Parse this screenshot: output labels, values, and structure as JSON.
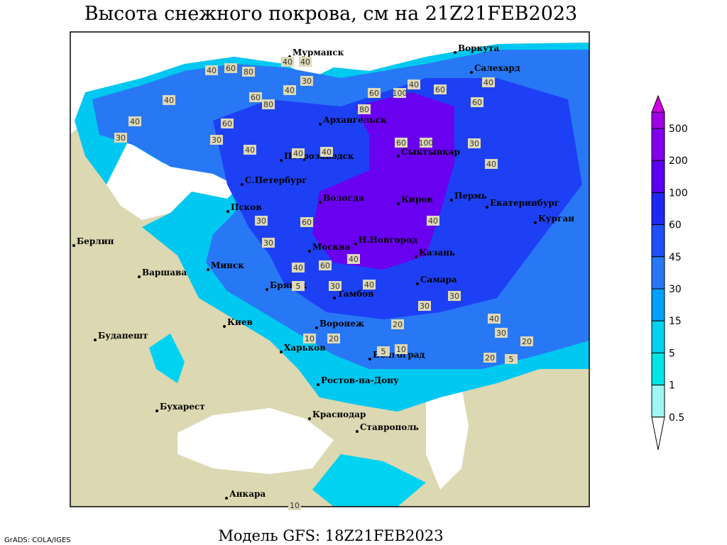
{
  "header": {
    "title": "Высота снежного покрова, см на 21Z21FEB2023"
  },
  "footer": {
    "credit": "GrADS: COLA/IGES",
    "model": "Модель GFS: 18Z21FEB2023"
  },
  "legend": {
    "levels": [
      {
        "value": 500,
        "label": "500",
        "color": "#a000e6"
      },
      {
        "value": 200,
        "label": "200",
        "color": "#8200f0"
      },
      {
        "value": 100,
        "label": "100",
        "color": "#5a00f5"
      },
      {
        "value": 60,
        "label": "60",
        "color": "#1e28f5"
      },
      {
        "value": 45,
        "label": "45",
        "color": "#1e50ff"
      },
      {
        "value": 30,
        "label": "30",
        "color": "#2878f5"
      },
      {
        "value": 15,
        "label": "15",
        "color": "#00a0ff"
      },
      {
        "value": 5,
        "label": "5",
        "color": "#00d2f0"
      },
      {
        "value": 1,
        "label": "1",
        "color": "#00e6e6"
      },
      {
        "value": 0.5,
        "label": "0.5",
        "color": "#a0f5f5"
      }
    ],
    "top_color": "#d200e6"
  },
  "cities": [
    "Мурманск",
    "Воркута",
    "Салехард",
    "Архангельск",
    "Петрозаводск",
    "Сыктывкар",
    "С.Петербург",
    "Вологда",
    "Киров",
    "Пермь",
    "Екатеринбург",
    "Курган",
    "Псков",
    "Берлин",
    "Н.Новгород",
    "Москва",
    "Казань",
    "Минск",
    "Варшава",
    "Самара",
    "Брянск",
    "Тамбов",
    "Киев",
    "Воронеж",
    "Будапешт",
    "Харьков",
    "Волгоград",
    "Ростов-на-Дону",
    "Бухарест",
    "Краснодар",
    "Ставрополь",
    "Анкара"
  ],
  "contour_labels": [
    "40",
    "60",
    "80",
    "40",
    "30",
    "60",
    "40",
    "80",
    "100",
    "40",
    "60",
    "40",
    "60",
    "80",
    "30",
    "40",
    "60",
    "30",
    "40",
    "40",
    "40",
    "40",
    "100",
    "60",
    "30",
    "40",
    "60",
    "40",
    "60",
    "30",
    "30",
    "40",
    "60",
    "40",
    "40",
    "30",
    "20",
    "40",
    "30",
    "20",
    "5",
    "10",
    "5",
    "10",
    "20",
    "10",
    "5",
    "30",
    "40",
    "30",
    "20"
  ]
}
